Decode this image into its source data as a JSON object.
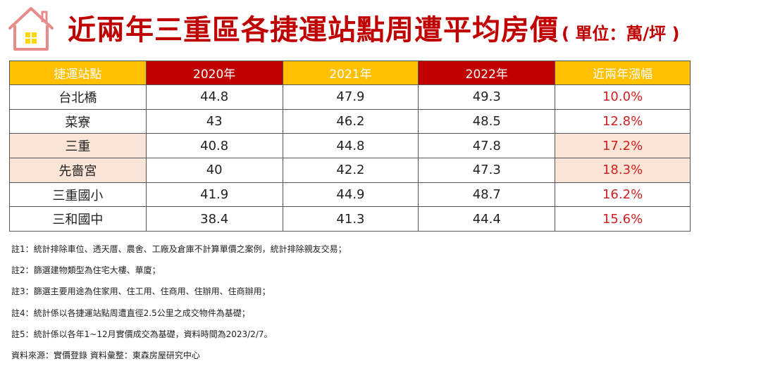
{
  "header": {
    "title": "近兩年三重區各捷運站點周遭平均房價",
    "unit": "( 單位：萬/坪 )"
  },
  "colors": {
    "accent_red": "#c00000",
    "header_gold": "#ffc000",
    "highlight_row": "#fbe5d6",
    "pct_text": "#d01f1f",
    "logo_pink": "#e88b8b",
    "logo_window": "#ffd700"
  },
  "icons": {
    "logo": "house-icon"
  },
  "table": {
    "headers": [
      "捷運站點",
      "2020年",
      "2021年",
      "2022年",
      "近兩年漲幅"
    ],
    "rows": [
      {
        "station": "台北橋",
        "y2020": "44.8",
        "y2021": "47.9",
        "y2022": "49.3",
        "growth": "10.0%"
      },
      {
        "station": "菜寮",
        "y2020": "43",
        "y2021": "46.2",
        "y2022": "48.5",
        "growth": "12.8%"
      },
      {
        "station": "三重",
        "y2020": "40.8",
        "y2021": "44.8",
        "y2022": "47.8",
        "growth": "17.2%"
      },
      {
        "station": "先嗇宮",
        "y2020": "40",
        "y2021": "42.2",
        "y2022": "47.3",
        "growth": "18.3%"
      },
      {
        "station": "三重國小",
        "y2020": "41.9",
        "y2021": "44.9",
        "y2022": "48.7",
        "growth": "16.2%"
      },
      {
        "station": "三和國中",
        "y2020": "38.4",
        "y2021": "41.3",
        "y2022": "44.4",
        "growth": "15.6%"
      }
    ]
  },
  "notes": [
    "註1：統計排除車位、透天厝、農舍、工廠及倉庫不計算單價之案例，統計排除親友交易；",
    "註2：篩選建物類型為住宅大樓、華廈；",
    "註3：篩選主要用途為住家用、住工用、住商用、住辦用、住商辦用；",
    "註4：統計係以各捷運站點周遭直徑2.5公里之成交物件為基礎；",
    "註5：統計係以各年1~12月實價成交為基礎，資料時間為2023/2/7。",
    "資料來源：實價登錄 資料彙整：東森房屋研究中心"
  ]
}
